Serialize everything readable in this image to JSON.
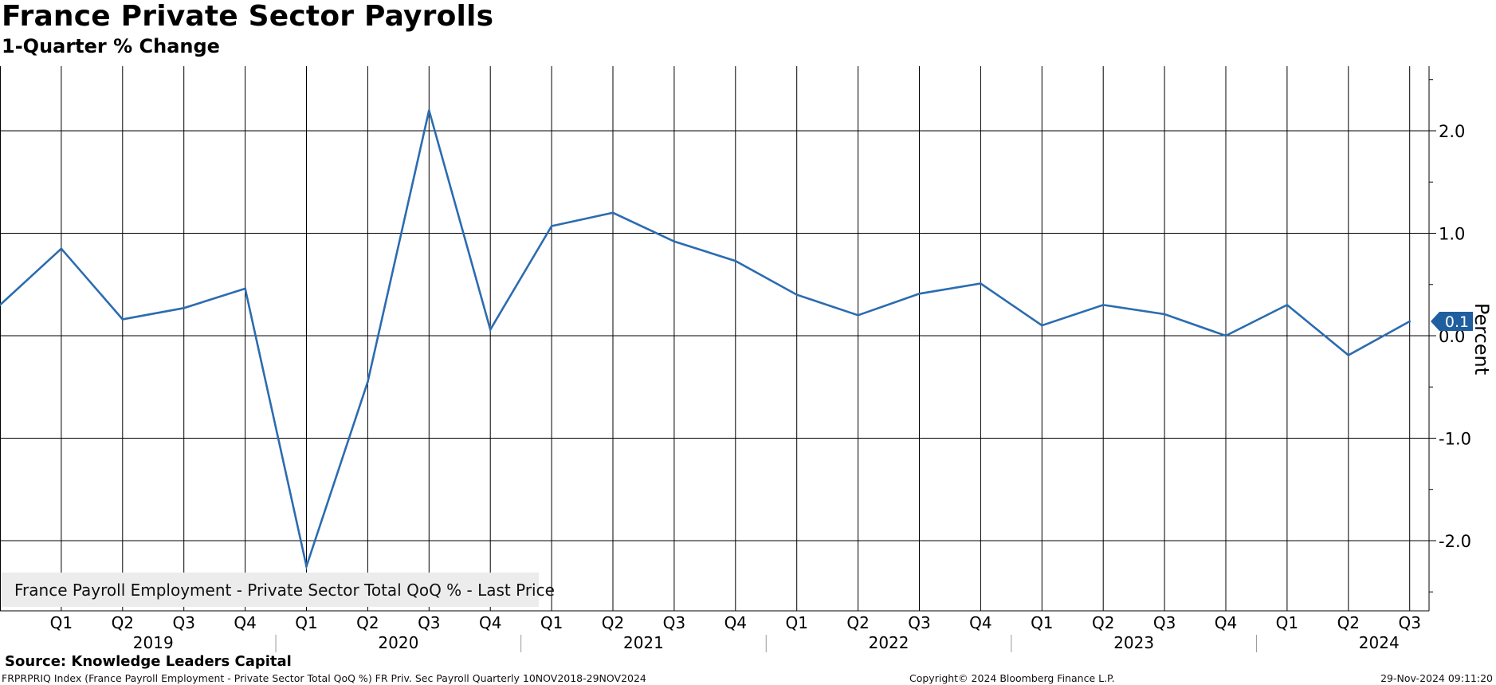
{
  "header": {
    "title": "France Private Sector Payrolls",
    "subtitle": "1-Quarter % Change"
  },
  "chart_data": {
    "type": "line",
    "ylabel": "Percent",
    "ylim": [
      -2.7,
      2.6
    ],
    "yticks": [
      2.0,
      1.0,
      0.0,
      -1.0,
      -2.0
    ],
    "ytick_labels": [
      "2.0",
      "1.0",
      "0.0",
      "-1.0",
      "-2.0"
    ],
    "grid": true,
    "x": [
      "2018 Q4",
      "2019 Q1",
      "2019 Q2",
      "2019 Q3",
      "2019 Q4",
      "2020 Q1",
      "2020 Q2",
      "2020 Q3",
      "2020 Q4",
      "2021 Q1",
      "2021 Q2",
      "2021 Q3",
      "2021 Q4",
      "2022 Q1",
      "2022 Q2",
      "2022 Q3",
      "2022 Q4",
      "2023 Q1",
      "2023 Q2",
      "2023 Q3",
      "2023 Q4",
      "2024 Q1",
      "2024 Q2",
      "2024 Q3"
    ],
    "quarter_labels": [
      "Q1",
      "Q2",
      "Q3",
      "Q4",
      "Q1",
      "Q2",
      "Q3",
      "Q4",
      "Q1",
      "Q2",
      "Q3",
      "Q4",
      "Q1",
      "Q2",
      "Q3",
      "Q4",
      "Q1",
      "Q2",
      "Q3",
      "Q4",
      "Q1",
      "Q2",
      "Q3"
    ],
    "years": [
      "2019",
      "2020",
      "2021",
      "2022",
      "2023",
      "2024"
    ],
    "series": [
      {
        "name": "France Payroll Employment - Private Sector Total QoQ % - Last Price",
        "color": "#2b6cb0",
        "values": [
          0.3,
          0.85,
          0.16,
          0.27,
          0.46,
          -2.25,
          -0.45,
          2.2,
          0.06,
          1.07,
          1.2,
          0.92,
          0.73,
          0.4,
          0.2,
          0.41,
          0.51,
          0.1,
          0.3,
          0.21,
          0.0,
          0.3,
          -0.19,
          0.14
        ]
      }
    ],
    "last_value_label": "0.1",
    "last_value_color": "#1f5f9f",
    "legend": "France Payroll Employment - Private Sector Total QoQ % - Last Price"
  },
  "footer": {
    "source": "Source: Knowledge Leaders Capital",
    "ticker_info": "FRPRPRIQ Index (France Payroll Employment - Private Sector Total QoQ %) FR Priv. Sec Payroll  Quarterly 10NOV2018-29NOV2024",
    "copyright": "Copyright© 2024 Bloomberg Finance L.P.",
    "timestamp": "29-Nov-2024 09:11:20"
  }
}
